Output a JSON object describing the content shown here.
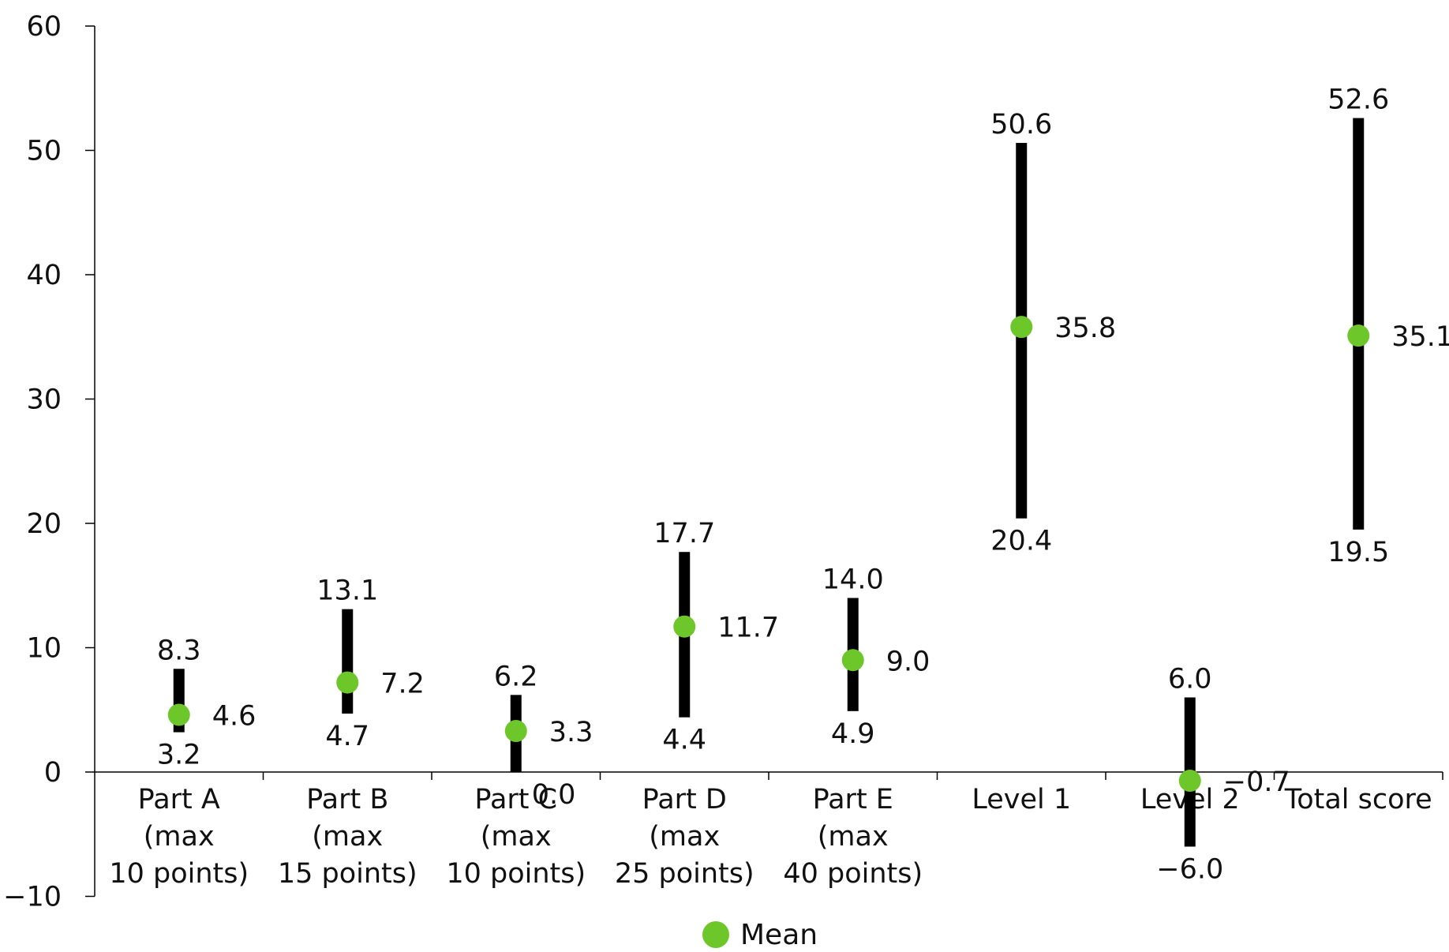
{
  "chart_data": {
    "type": "range-dot",
    "categories": [
      [
        "Part A",
        "(max",
        "10 points)"
      ],
      [
        "Part B",
        "(max",
        "15 points)"
      ],
      [
        "Part C",
        "(max",
        "10 points)"
      ],
      [
        "Part D",
        "(max",
        "25 points)"
      ],
      [
        "Part E",
        "(max",
        "40 points)"
      ],
      [
        "Level 1"
      ],
      [
        "Level 2"
      ],
      [
        "Total score"
      ]
    ],
    "series": [
      {
        "name": "Mean",
        "values": [
          4.6,
          7.2,
          3.3,
          11.7,
          9.0,
          35.8,
          -0.7,
          35.1
        ]
      }
    ],
    "min": [
      3.2,
      4.7,
      0.0,
      4.4,
      4.9,
      20.4,
      -6.0,
      19.5
    ],
    "max": [
      8.3,
      13.1,
      6.2,
      17.7,
      14.0,
      50.6,
      6.0,
      52.6
    ],
    "value_labels": {
      "mean": [
        "4.6",
        "7.2",
        "3.3",
        "11.7",
        "9.0",
        "35.8",
        "−0.7",
        "35.1"
      ],
      "min": [
        "3.2",
        "4.7",
        "0.0",
        "4.4",
        "4.9",
        "20.4",
        "−6.0",
        "19.5"
      ],
      "max": [
        "8.3",
        "13.1",
        "6.2",
        "17.7",
        "14.0",
        "50.6",
        "6.0",
        "52.6"
      ]
    },
    "yticks": [
      -10,
      0,
      10,
      20,
      30,
      40,
      50,
      60
    ],
    "ytick_labels": [
      "−10",
      "0",
      "10",
      "20",
      "30",
      "40",
      "50",
      "60"
    ],
    "ylim": [
      -10,
      60
    ],
    "grid": false,
    "legend": "bottom-center",
    "colors": {
      "mean_marker": "#6dc72b",
      "range_bar": "#000000",
      "axis": "#000000"
    }
  },
  "legend": {
    "label": "Mean"
  }
}
